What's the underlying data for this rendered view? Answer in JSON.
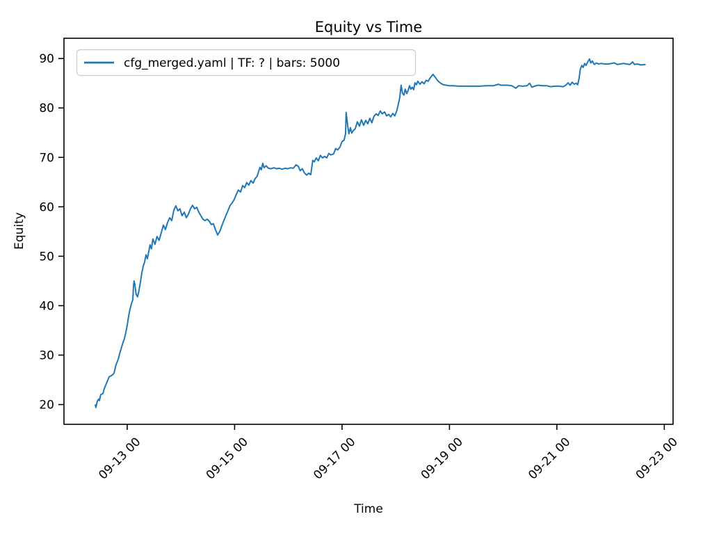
{
  "figure": {
    "title": "Equity vs Time",
    "background_color": "#ffffff",
    "axes_color": "#000000",
    "legend_border_color": "#cccccc"
  },
  "chart_data": {
    "type": "line",
    "title": "Equity vs Time",
    "xlabel": "Time",
    "ylabel": "Equity",
    "grid": false,
    "legend_position": "upper left",
    "x_tick_rotation_deg": 45,
    "xlim": [
      "09-11 19:45",
      "09-23 03:55"
    ],
    "ylim": [
      16.0,
      94.1
    ],
    "yticks": [
      20,
      30,
      40,
      50,
      60,
      70,
      80,
      90
    ],
    "xticks": [
      {
        "time": "09-13 00:00",
        "label": "09-13 00"
      },
      {
        "time": "09-15 00:00",
        "label": "09-15 00"
      },
      {
        "time": "09-17 00:00",
        "label": "09-17 00"
      },
      {
        "time": "09-19 00:00",
        "label": "09-19 00"
      },
      {
        "time": "09-21 00:00",
        "label": "09-21 00"
      },
      {
        "time": "09-23 00:00",
        "label": "09-23 00"
      }
    ],
    "series": [
      {
        "name": "cfg_merged.yaml | TF: ? | bars: 5000",
        "color": "#1f77b4",
        "line_width": 2,
        "points": [
          [
            "09-12 09:45",
            19.9
          ],
          [
            "09-12 10:00",
            19.4
          ],
          [
            "09-12 10:40",
            20.7
          ],
          [
            "09-12 11:15",
            21.1
          ],
          [
            "09-12 11:35",
            20.8
          ],
          [
            "09-12 12:10",
            22.0
          ],
          [
            "09-12 13:10",
            22.2
          ],
          [
            "09-12 13:45",
            23.2
          ],
          [
            "09-12 14:40",
            24.2
          ],
          [
            "09-12 15:55",
            25.6
          ],
          [
            "09-12 17:10",
            25.9
          ],
          [
            "09-12 18:05",
            26.3
          ],
          [
            "09-12 19:00",
            28.0
          ],
          [
            "09-12 20:00",
            29.2
          ],
          [
            "09-12 20:35",
            30.2
          ],
          [
            "09-12 21:30",
            31.6
          ],
          [
            "09-12 22:10",
            32.6
          ],
          [
            "09-12 22:45",
            33.3
          ],
          [
            "09-12 23:25",
            34.6
          ],
          [
            "09-13 00:00",
            36.0
          ],
          [
            "09-13 00:40",
            38.0
          ],
          [
            "09-13 01:15",
            39.2
          ],
          [
            "09-13 01:50",
            40.3
          ],
          [
            "09-13 02:30",
            41.2
          ],
          [
            "09-13 02:50",
            44.0
          ],
          [
            "09-13 03:05",
            45.0
          ],
          [
            "09-13 03:25",
            44.3
          ],
          [
            "09-13 04:00",
            42.3
          ],
          [
            "09-13 04:40",
            41.8
          ],
          [
            "09-13 05:15",
            43.0
          ],
          [
            "09-13 05:55",
            44.8
          ],
          [
            "09-13 06:30",
            46.5
          ],
          [
            "09-13 07:10",
            48.0
          ],
          [
            "09-13 07:45",
            48.8
          ],
          [
            "09-13 08:25",
            50.3
          ],
          [
            "09-13 09:00",
            49.5
          ],
          [
            "09-13 09:40",
            51.0
          ],
          [
            "09-13 10:15",
            52.3
          ],
          [
            "09-13 10:50",
            51.5
          ],
          [
            "09-13 11:30",
            53.5
          ],
          [
            "09-13 12:25",
            52.4
          ],
          [
            "09-13 13:20",
            54.0
          ],
          [
            "09-13 14:15",
            53.2
          ],
          [
            "09-13 15:15",
            54.8
          ],
          [
            "09-13 16:10",
            56.3
          ],
          [
            "09-13 17:05",
            55.4
          ],
          [
            "09-13 18:00",
            56.8
          ],
          [
            "09-13 19:00",
            57.8
          ],
          [
            "09-13 19:55",
            57.2
          ],
          [
            "09-13 20:50",
            59.3
          ],
          [
            "09-13 21:45",
            60.2
          ],
          [
            "09-13 22:40",
            59.2
          ],
          [
            "09-13 23:35",
            59.6
          ],
          [
            "09-14 00:30",
            58.2
          ],
          [
            "09-14 01:30",
            58.9
          ],
          [
            "09-14 02:25",
            57.8
          ],
          [
            "09-14 03:20",
            58.5
          ],
          [
            "09-14 04:15",
            59.6
          ],
          [
            "09-14 05:10",
            60.3
          ],
          [
            "09-14 06:10",
            59.6
          ],
          [
            "09-14 07:05",
            59.9
          ],
          [
            "09-14 08:00",
            58.9
          ],
          [
            "09-14 08:55",
            58.2
          ],
          [
            "09-14 09:50",
            57.5
          ],
          [
            "09-14 10:45",
            57.2
          ],
          [
            "09-14 11:45",
            57.5
          ],
          [
            "09-14 12:40",
            57.1
          ],
          [
            "09-14 13:35",
            56.4
          ],
          [
            "09-14 14:30",
            56.6
          ],
          [
            "09-14 15:25",
            55.4
          ],
          [
            "09-14 16:25",
            54.3
          ],
          [
            "09-14 17:20",
            55.0
          ],
          [
            "09-14 18:15",
            56.1
          ],
          [
            "09-14 19:10",
            57.2
          ],
          [
            "09-14 20:05",
            58.2
          ],
          [
            "09-14 21:00",
            59.2
          ],
          [
            "09-14 22:00",
            60.3
          ],
          [
            "09-14 22:55",
            60.8
          ],
          [
            "09-14 23:50",
            61.5
          ],
          [
            "09-15 00:45",
            62.5
          ],
          [
            "09-15 01:40",
            63.4
          ],
          [
            "09-15 02:40",
            63.0
          ],
          [
            "09-15 03:35",
            64.3
          ],
          [
            "09-15 04:30",
            63.9
          ],
          [
            "09-15 05:25",
            64.9
          ],
          [
            "09-15 06:20",
            64.4
          ],
          [
            "09-15 07:15",
            65.3
          ],
          [
            "09-15 08:15",
            64.8
          ],
          [
            "09-15 09:10",
            65.7
          ],
          [
            "09-15 10:05",
            66.2
          ],
          [
            "09-15 10:40",
            67.1
          ],
          [
            "09-15 11:20",
            68.0
          ],
          [
            "09-15 11:55",
            67.5
          ],
          [
            "09-15 12:35",
            68.8
          ],
          [
            "09-15 13:10",
            67.9
          ],
          [
            "09-15 14:05",
            68.3
          ],
          [
            "09-15 15:05",
            67.8
          ],
          [
            "09-15 16:20",
            67.7
          ],
          [
            "09-15 17:30",
            67.9
          ],
          [
            "09-15 18:45",
            67.7
          ],
          [
            "09-15 20:00",
            67.8
          ],
          [
            "09-15 21:15",
            67.6
          ],
          [
            "09-15 22:30",
            67.8
          ],
          [
            "09-15 23:45",
            67.7
          ],
          [
            "09-16 01:00",
            67.9
          ],
          [
            "09-16 02:15",
            67.8
          ],
          [
            "09-16 03:30",
            68.5
          ],
          [
            "09-16 04:25",
            68.2
          ],
          [
            "09-16 05:20",
            67.3
          ],
          [
            "09-16 06:15",
            67.7
          ],
          [
            "09-16 07:10",
            66.9
          ],
          [
            "09-16 08:10",
            66.4
          ],
          [
            "09-16 09:05",
            66.8
          ],
          [
            "09-16 10:00",
            66.5
          ],
          [
            "09-16 10:55",
            69.4
          ],
          [
            "09-16 11:35",
            69.1
          ],
          [
            "09-16 12:30",
            69.9
          ],
          [
            "09-16 13:25",
            69.3
          ],
          [
            "09-16 14:20",
            70.4
          ],
          [
            "09-16 15:15",
            69.9
          ],
          [
            "09-16 16:15",
            70.2
          ],
          [
            "09-16 17:10",
            69.9
          ],
          [
            "09-16 18:05",
            70.8
          ],
          [
            "09-16 19:00",
            70.5
          ],
          [
            "09-16 20:15",
            70.7
          ],
          [
            "09-16 21:10",
            71.8
          ],
          [
            "09-16 22:05",
            71.5
          ],
          [
            "09-16 23:05",
            72.1
          ],
          [
            "09-17 00:00",
            73.2
          ],
          [
            "09-17 00:55",
            73.5
          ],
          [
            "09-17 01:35",
            74.8
          ],
          [
            "09-17 01:50",
            79.1
          ],
          [
            "09-17 02:30",
            76.5
          ],
          [
            "09-17 03:05",
            74.8
          ],
          [
            "09-17 03:45",
            76.0
          ],
          [
            "09-17 04:20",
            74.9
          ],
          [
            "09-17 05:00",
            75.4
          ],
          [
            "09-17 05:55",
            75.8
          ],
          [
            "09-17 06:50",
            77.2
          ],
          [
            "09-17 07:45",
            76.3
          ],
          [
            "09-17 08:40",
            77.6
          ],
          [
            "09-17 09:40",
            76.5
          ],
          [
            "09-17 10:35",
            77.5
          ],
          [
            "09-17 11:30",
            76.8
          ],
          [
            "09-17 12:25",
            77.9
          ],
          [
            "09-17 13:20",
            77.0
          ],
          [
            "09-17 14:15",
            78.3
          ],
          [
            "09-17 15:15",
            78.8
          ],
          [
            "09-17 16:10",
            78.5
          ],
          [
            "09-17 17:05",
            79.4
          ],
          [
            "09-17 18:00",
            78.8
          ],
          [
            "09-17 19:00",
            79.2
          ],
          [
            "09-17 19:55",
            78.4
          ],
          [
            "09-17 20:50",
            78.7
          ],
          [
            "09-17 21:45",
            78.2
          ],
          [
            "09-17 22:40",
            78.9
          ],
          [
            "09-17 23:35",
            78.4
          ],
          [
            "09-18 00:30",
            79.5
          ],
          [
            "09-18 01:10",
            80.8
          ],
          [
            "09-18 01:45",
            82.0
          ],
          [
            "09-18 02:25",
            84.6
          ],
          [
            "09-18 03:00",
            83.0
          ],
          [
            "09-18 03:40",
            82.6
          ],
          [
            "09-18 04:15",
            83.8
          ],
          [
            "09-18 04:55",
            82.9
          ],
          [
            "09-18 05:30",
            83.5
          ],
          [
            "09-18 06:10",
            84.5
          ],
          [
            "09-18 06:45",
            83.8
          ],
          [
            "09-18 07:20",
            84.2
          ],
          [
            "09-18 08:00",
            83.7
          ],
          [
            "09-18 08:35",
            85.1
          ],
          [
            "09-18 09:15",
            84.7
          ],
          [
            "09-18 09:50",
            85.4
          ],
          [
            "09-18 10:50",
            84.8
          ],
          [
            "09-18 11:45",
            85.3
          ],
          [
            "09-18 12:40",
            84.9
          ],
          [
            "09-18 13:35",
            85.6
          ],
          [
            "09-18 14:30",
            85.4
          ],
          [
            "09-18 15:25",
            86.1
          ],
          [
            "09-18 16:40",
            86.8
          ],
          [
            "09-18 17:40",
            86.2
          ],
          [
            "09-18 18:35",
            85.6
          ],
          [
            "09-18 19:30",
            85.2
          ],
          [
            "09-18 20:25",
            84.9
          ],
          [
            "09-18 21:20",
            84.7
          ],
          [
            "09-18 22:35",
            84.6
          ],
          [
            "09-18 23:50",
            84.5
          ],
          [
            "09-19 01:40",
            84.5
          ],
          [
            "09-19 04:10",
            84.4
          ],
          [
            "09-19 07:15",
            84.4
          ],
          [
            "09-19 10:25",
            84.4
          ],
          [
            "09-19 13:30",
            84.4
          ],
          [
            "09-19 16:35",
            84.5
          ],
          [
            "09-19 19:45",
            84.5
          ],
          [
            "09-19 21:55",
            84.8
          ],
          [
            "09-19 22:50",
            84.6
          ],
          [
            "09-20 00:25",
            84.6
          ],
          [
            "09-20 02:00",
            84.6
          ],
          [
            "09-20 03:50",
            84.5
          ],
          [
            "09-20 05:40",
            84.0
          ],
          [
            "09-20 06:55",
            84.5
          ],
          [
            "09-20 08:45",
            84.4
          ],
          [
            "09-20 10:40",
            84.5
          ],
          [
            "09-20 11:50",
            85.0
          ],
          [
            "09-20 12:50",
            84.2
          ],
          [
            "09-20 14:00",
            84.4
          ],
          [
            "09-20 15:35",
            84.6
          ],
          [
            "09-20 17:30",
            84.5
          ],
          [
            "09-20 19:20",
            84.5
          ],
          [
            "09-20 21:10",
            84.3
          ],
          [
            "09-20 23:05",
            84.4
          ],
          [
            "09-21 00:55",
            84.4
          ],
          [
            "09-21 02:45",
            84.3
          ],
          [
            "09-21 04:00",
            84.6
          ],
          [
            "09-21 05:00",
            85.1
          ],
          [
            "09-21 05:55",
            84.6
          ],
          [
            "09-21 06:50",
            85.2
          ],
          [
            "09-21 07:45",
            84.8
          ],
          [
            "09-21 08:40",
            85.0
          ],
          [
            "09-21 09:20",
            84.7
          ],
          [
            "09-21 09:55",
            86.0
          ],
          [
            "09-21 10:30",
            87.9
          ],
          [
            "09-21 11:10",
            88.6
          ],
          [
            "09-21 11:45",
            88.2
          ],
          [
            "09-21 12:25",
            89.0
          ],
          [
            "09-21 13:00",
            88.6
          ],
          [
            "09-21 13:40",
            89.2
          ],
          [
            "09-21 14:35",
            89.9
          ],
          [
            "09-21 15:10",
            89.1
          ],
          [
            "09-21 15:50",
            89.5
          ],
          [
            "09-21 16:45",
            88.8
          ],
          [
            "09-21 17:40",
            89.1
          ],
          [
            "09-21 18:35",
            88.9
          ],
          [
            "09-21 19:50",
            89.0
          ],
          [
            "09-21 21:25",
            88.9
          ],
          [
            "09-21 23:00",
            88.9
          ],
          [
            "09-22 00:30",
            89.0
          ],
          [
            "09-22 01:45",
            89.1
          ],
          [
            "09-22 03:00",
            88.8
          ],
          [
            "09-22 04:15",
            88.9
          ],
          [
            "09-22 05:50",
            89.0
          ],
          [
            "09-22 07:05",
            88.9
          ],
          [
            "09-22 08:35",
            88.8
          ],
          [
            "09-22 09:50",
            89.3
          ],
          [
            "09-22 10:45",
            88.8
          ],
          [
            "09-22 12:00",
            88.9
          ],
          [
            "09-22 13:35",
            88.7
          ],
          [
            "09-22 15:25",
            88.8
          ]
        ]
      }
    ]
  }
}
